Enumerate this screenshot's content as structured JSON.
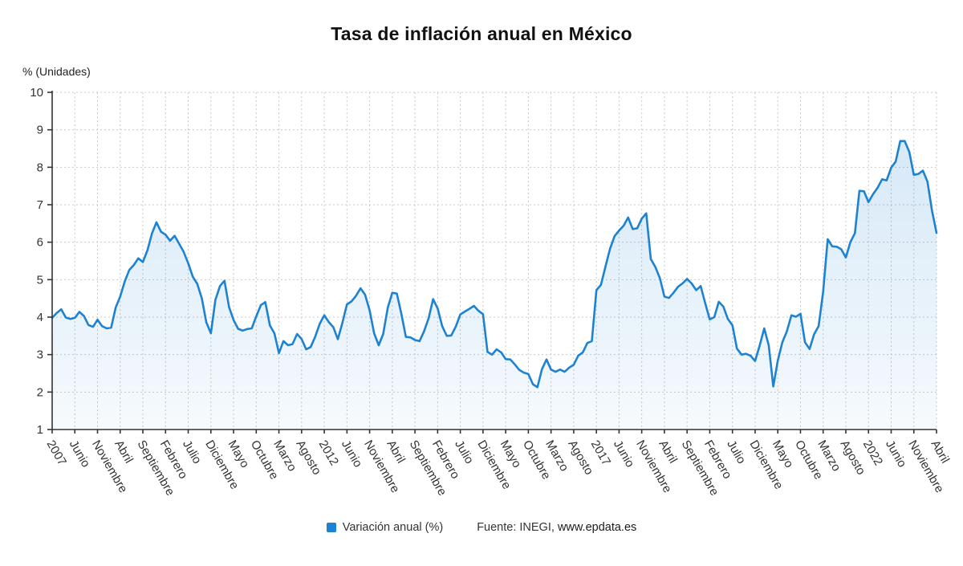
{
  "page": {
    "title": "Tasa de inflación anual en México"
  },
  "legend": {
    "series_label": "Variación anual (%)",
    "source_prefix": "Fuente: INEGI, ",
    "source_link": "www.epdata.es"
  },
  "chart_data": {
    "type": "area",
    "title": "Tasa de inflación anual en México",
    "xlabel": "",
    "ylabel": "% (Unidades)",
    "ylim": [
      1,
      10
    ],
    "y_ticks": [
      1,
      2,
      3,
      4,
      5,
      6,
      7,
      8,
      9,
      10
    ],
    "grid": true,
    "legend_position": "bottom",
    "x_start": "Enero 2007",
    "x_end": "Abril 2023",
    "frequency": "monthly",
    "tick_step": 5,
    "tick_labels": [
      "2007",
      "Junio",
      "Noviembre",
      "Abril",
      "Septiembre",
      "Febrero",
      "Julio",
      "Diciembre",
      "Mayo",
      "Octubre",
      "Marzo",
      "Agosto",
      "2012",
      "Junio",
      "Noviembre",
      "Abril",
      "Septiembre",
      "Febrero",
      "Julio",
      "Diciembre",
      "Mayo",
      "Octubre",
      "Marzo",
      "Agosto",
      "2017",
      "Junio",
      "Noviembre",
      "Abril",
      "Septiembre",
      "Febrero",
      "Julio",
      "Diciembre",
      "Mayo",
      "Octubre",
      "Marzo",
      "Agosto",
      "2022",
      "Junio",
      "Noviembre",
      "Abril"
    ],
    "series": [
      {
        "name": "Variación anual (%)",
        "values": [
          3.98,
          4.11,
          4.21,
          3.99,
          3.95,
          3.98,
          4.14,
          4.03,
          3.79,
          3.74,
          3.93,
          3.76,
          3.7,
          3.72,
          4.25,
          4.55,
          4.95,
          5.26,
          5.39,
          5.57,
          5.47,
          5.78,
          6.23,
          6.53,
          6.28,
          6.2,
          6.04,
          6.17,
          5.96,
          5.74,
          5.44,
          5.08,
          4.89,
          4.5,
          3.86,
          3.57,
          4.46,
          4.83,
          4.97,
          4.27,
          3.92,
          3.69,
          3.64,
          3.68,
          3.7,
          4.02,
          4.32,
          4.4,
          3.78,
          3.57,
          3.04,
          3.36,
          3.25,
          3.28,
          3.55,
          3.42,
          3.14,
          3.2,
          3.48,
          3.82,
          4.05,
          3.87,
          3.73,
          3.41,
          3.85,
          4.34,
          4.42,
          4.57,
          4.77,
          4.6,
          4.18,
          3.57,
          3.25,
          3.55,
          4.25,
          4.65,
          4.63,
          4.09,
          3.47,
          3.46,
          3.39,
          3.36,
          3.62,
          3.97,
          4.48,
          4.23,
          3.76,
          3.5,
          3.51,
          3.75,
          4.07,
          4.15,
          4.22,
          4.3,
          4.17,
          4.08,
          3.07,
          3.0,
          3.14,
          3.06,
          2.88,
          2.87,
          2.74,
          2.59,
          2.52,
          2.48,
          2.21,
          2.13,
          2.61,
          2.87,
          2.6,
          2.54,
          2.6,
          2.54,
          2.65,
          2.73,
          2.97,
          3.06,
          3.31,
          3.36,
          4.72,
          4.86,
          5.35,
          5.82,
          6.16,
          6.31,
          6.44,
          6.66,
          6.35,
          6.37,
          6.63,
          6.77,
          5.55,
          5.34,
          5.04,
          4.55,
          4.51,
          4.65,
          4.81,
          4.9,
          5.02,
          4.9,
          4.72,
          4.83,
          4.37,
          3.94,
          4.0,
          4.41,
          4.28,
          3.95,
          3.78,
          3.16,
          3.0,
          3.02,
          2.97,
          2.83,
          3.24,
          3.7,
          3.25,
          2.15,
          2.84,
          3.33,
          3.62,
          4.05,
          4.01,
          4.09,
          3.33,
          3.15,
          3.54,
          3.76,
          4.67,
          6.08,
          5.89,
          5.88,
          5.81,
          5.59,
          6.0,
          6.24,
          7.37,
          7.36,
          7.07,
          7.28,
          7.45,
          7.68,
          7.65,
          7.99,
          8.15,
          8.7,
          8.7,
          8.41,
          7.8,
          7.82,
          7.91,
          7.62,
          6.85,
          6.25
        ]
      }
    ],
    "colors": {
      "line": "#1e82d2",
      "area_top": "rgba(30,130,210,0.18)",
      "area_bottom": "rgba(30,130,210,0.04)",
      "grid": "#c9c9c9",
      "axis": "#333333",
      "text": "#333333"
    },
    "source": "Fuente: INEGI, www.epdata.es"
  }
}
